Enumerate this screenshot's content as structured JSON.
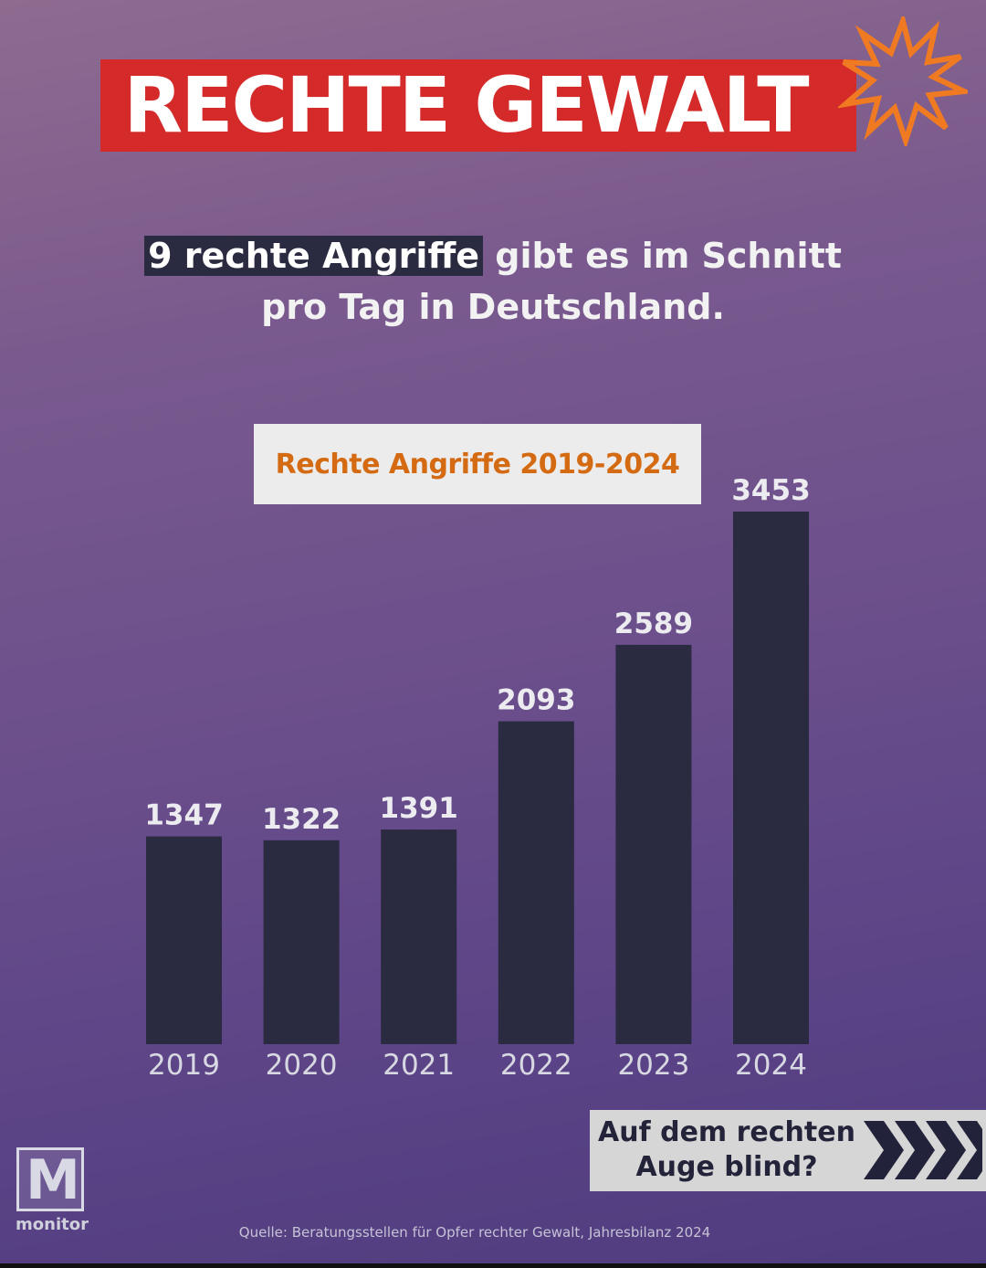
{
  "headline": {
    "text": "RECHTE GEWALT",
    "bar_color": "#d42a2a",
    "burst_color": "#f07a22",
    "burst_icon": "burst-icon"
  },
  "subtitle": {
    "highlight": "9 rechte Angriffe",
    "rest_line1": "gibt es im Schnitt",
    "line2": "pro Tag in Deutschland."
  },
  "chart_data": {
    "type": "bar",
    "title": "Rechte Angriffe 2019-2024",
    "categories": [
      "2019",
      "2020",
      "2021",
      "2022",
      "2023",
      "2024"
    ],
    "values": [
      1347,
      1322,
      1391,
      2093,
      2589,
      3453
    ],
    "value_labels": [
      "1347",
      "1322",
      "1391",
      "2093",
      "2589",
      "3453"
    ],
    "bar_color": "#2a2a40",
    "grid": false,
    "legend": "none"
  },
  "cta": {
    "line1": "Auf dem rechten",
    "line2": "Auge blind?",
    "icon": "chevrons-right-icon"
  },
  "logo": {
    "letter": "M",
    "word": "monitor"
  },
  "source": "Quelle: Beratungsstellen für Opfer rechter Gewalt, Jahresbilanz 2024"
}
